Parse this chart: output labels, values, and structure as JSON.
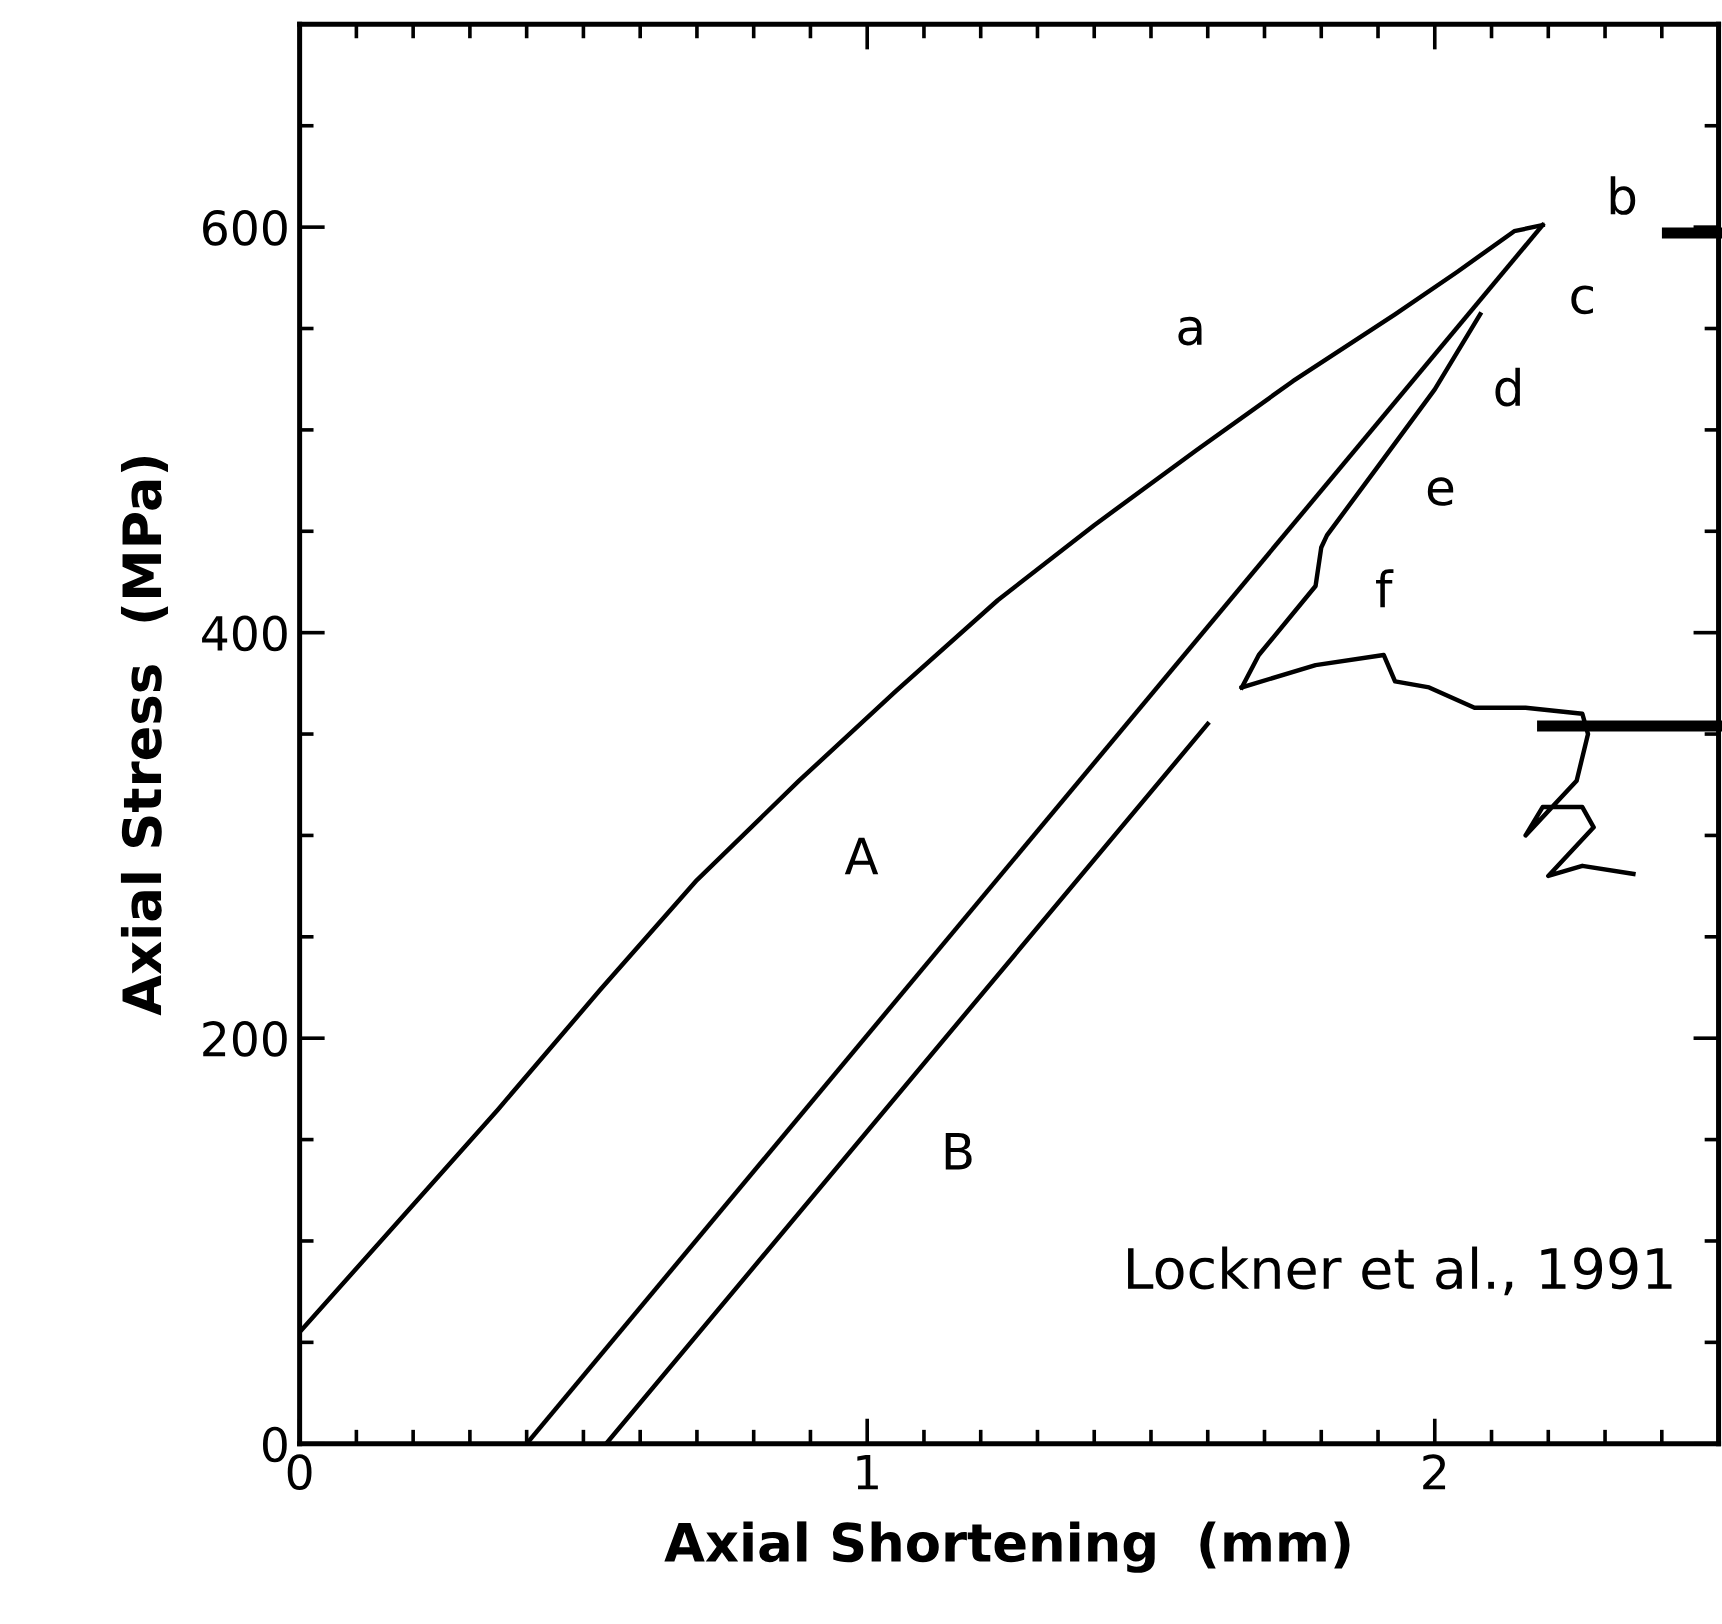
{
  "chart_data": {
    "type": "line",
    "xlabel": "Axial Shortening  (mm)",
    "ylabel": "Axial Stress  (MPa)",
    "xlim": [
      0,
      2.5
    ],
    "ylim": [
      0,
      700
    ],
    "xticks": [
      0,
      {
        "value": 0.1,
        "label": null
      },
      {
        "value": 0.2,
        "label": null
      },
      {
        "value": 0.3,
        "label": null
      },
      {
        "value": 0.4,
        "label": null
      },
      {
        "value": 0.5,
        "label": null
      },
      {
        "value": 0.6,
        "label": null
      },
      {
        "value": 0.7,
        "label": null
      },
      {
        "value": 0.8,
        "label": null
      },
      {
        "value": 0.9,
        "label": null
      },
      1,
      {
        "value": 1.1,
        "label": null
      },
      {
        "value": 1.2,
        "label": null
      },
      {
        "value": 1.3,
        "label": null
      },
      {
        "value": 1.4,
        "label": null
      },
      {
        "value": 1.5,
        "label": null
      },
      {
        "value": 1.6,
        "label": null
      },
      {
        "value": 1.7,
        "label": null
      },
      {
        "value": 1.8,
        "label": null
      },
      {
        "value": 1.9,
        "label": null
      },
      2,
      {
        "value": 2.1,
        "label": null
      },
      {
        "value": 2.2,
        "label": null
      },
      {
        "value": 2.3,
        "label": null
      },
      {
        "value": 2.4,
        "label": null
      }
    ],
    "yticks": [
      0,
      {
        "value": 50,
        "label": null
      },
      {
        "value": 100,
        "label": null
      },
      {
        "value": 150,
        "label": null
      },
      200,
      {
        "value": 250,
        "label": null
      },
      {
        "value": 300,
        "label": null
      },
      {
        "value": 350,
        "label": null
      },
      400,
      {
        "value": 450,
        "label": null
      },
      {
        "value": 500,
        "label": null
      },
      {
        "value": 550,
        "label": null
      },
      600,
      {
        "value": 650,
        "label": null
      }
    ],
    "grid": false,
    "marker": "none",
    "ref_lines": [
      {
        "axis": "y",
        "value": 354,
        "color": "#000000"
      }
    ],
    "line_style": "solid",
    "series": [
      {
        "color": "#000000",
        "x": [
          0,
          0.175,
          0.35,
          0.53,
          0.7,
          0.88,
          1.05,
          1.23,
          1.4,
          1.58,
          1.75,
          1.93,
          2.04,
          2.14,
          2.19
        ],
        "values": [
          55,
          110,
          165,
          224,
          278,
          327,
          371,
          416,
          453,
          490,
          524,
          557,
          578,
          598,
          601
        ]
      },
      {
        "color": "#000000",
        "x": [
          2.19,
          0.4
        ],
        "values": [
          601,
          0
        ]
      },
      {
        "color": "#000000",
        "x": [
          0.54,
          1.6,
          1.63,
          1.66,
          1.69,
          1.79,
          1.8,
          1.81,
          1.9,
          2.0,
          2.08
        ],
        "values": [
          0,
          355,
          null,
          373,
          389,
          423,
          442,
          448,
          482,
          520,
          557
        ]
      },
      {
        "color": "#000000",
        "x": [
          1.66,
          1.79,
          1.91,
          1.93,
          1.99,
          2.07,
          2.16,
          2.26,
          2.27,
          2.25,
          2.16,
          2.19,
          2.26,
          2.28,
          2.2,
          2.26,
          2.35
        ],
        "values": [
          373,
          384,
          389,
          376,
          373,
          363,
          363,
          360,
          350,
          327,
          300,
          314,
          314,
          304,
          280,
          285,
          281
        ]
      }
    ],
    "annotations": [
      "a",
      "b",
      "c",
      "d",
      "e",
      "f",
      "A",
      "B",
      "Lockner et al., 1991"
    ]
  }
}
